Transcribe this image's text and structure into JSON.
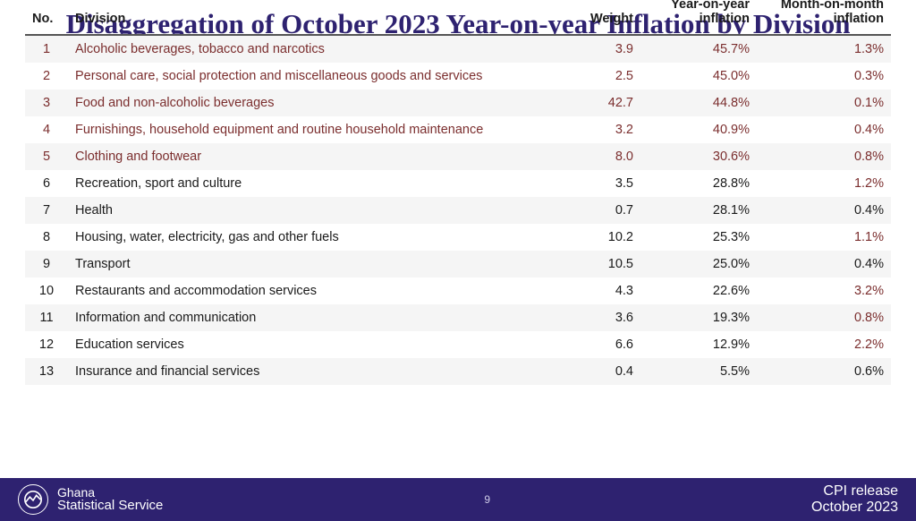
{
  "title": "Disaggregation of October 2023 Year-on-year Inflation by Division",
  "colors": {
    "title": "#2e2270",
    "footer_bg": "#2e2270",
    "highlight_text": "#7b2e2e",
    "row_odd_bg": "#f5f5f5",
    "row_even_bg": "#ffffff",
    "header_border": "#555555"
  },
  "table": {
    "columns": {
      "no": "No.",
      "division": "Division",
      "weight": "Weight",
      "yoy": "Year-on-year inflation",
      "mom": "Month-on-month inflation"
    },
    "rows": [
      {
        "no": "1",
        "division": "Alcoholic beverages, tobacco and narcotics",
        "weight": "3.9",
        "yoy": "45.7%",
        "mom": "1.3%",
        "hi_row": true
      },
      {
        "no": "2",
        "division": "Personal care, social protection and miscellaneous goods and services",
        "weight": "2.5",
        "yoy": "45.0%",
        "mom": "0.3%",
        "hi_row": true
      },
      {
        "no": "3",
        "division": "Food and non-alcoholic beverages",
        "weight": "42.7",
        "yoy": "44.8%",
        "mom": "0.1%",
        "hi_row": true
      },
      {
        "no": "4",
        "division": "Furnishings, household equipment and routine household maintenance",
        "weight": "3.2",
        "yoy": "40.9%",
        "mom": "0.4%",
        "hi_row": true
      },
      {
        "no": "5",
        "division": "Clothing and footwear",
        "weight": "8.0",
        "yoy": "30.6%",
        "mom": "0.8%",
        "hi_row": true
      },
      {
        "no": "6",
        "division": "Recreation, sport and culture",
        "weight": "3.5",
        "yoy": "28.8%",
        "mom": "1.2%",
        "hi_row": false,
        "mom_hi": true
      },
      {
        "no": "7",
        "division": "Health",
        "weight": "0.7",
        "yoy": "28.1%",
        "mom": "0.4%",
        "hi_row": false
      },
      {
        "no": "8",
        "division": "Housing, water, electricity, gas and other fuels",
        "weight": "10.2",
        "yoy": "25.3%",
        "mom": "1.1%",
        "hi_row": false,
        "mom_hi": true
      },
      {
        "no": "9",
        "division": "Transport",
        "weight": "10.5",
        "yoy": "25.0%",
        "mom": "0.4%",
        "hi_row": false
      },
      {
        "no": "10",
        "division": "Restaurants and accommodation services",
        "weight": "4.3",
        "yoy": "22.6%",
        "mom": "3.2%",
        "hi_row": false,
        "mom_hi": true
      },
      {
        "no": "11",
        "division": "Information and communication",
        "weight": "3.6",
        "yoy": "19.3%",
        "mom": "0.8%",
        "hi_row": false,
        "mom_hi": true
      },
      {
        "no": "12",
        "division": "Education services",
        "weight": "6.6",
        "yoy": "12.9%",
        "mom": "2.2%",
        "hi_row": false,
        "mom_hi": true
      },
      {
        "no": "13",
        "division": "Insurance and financial services",
        "weight": "0.4",
        "yoy": "5.5%",
        "mom": "0.6%",
        "hi_row": false
      }
    ]
  },
  "footer": {
    "org_line1": "Ghana",
    "org_line2": "Statistical Service",
    "page_number": "9",
    "right_line1": "CPI release",
    "right_line2": "October  2023"
  }
}
